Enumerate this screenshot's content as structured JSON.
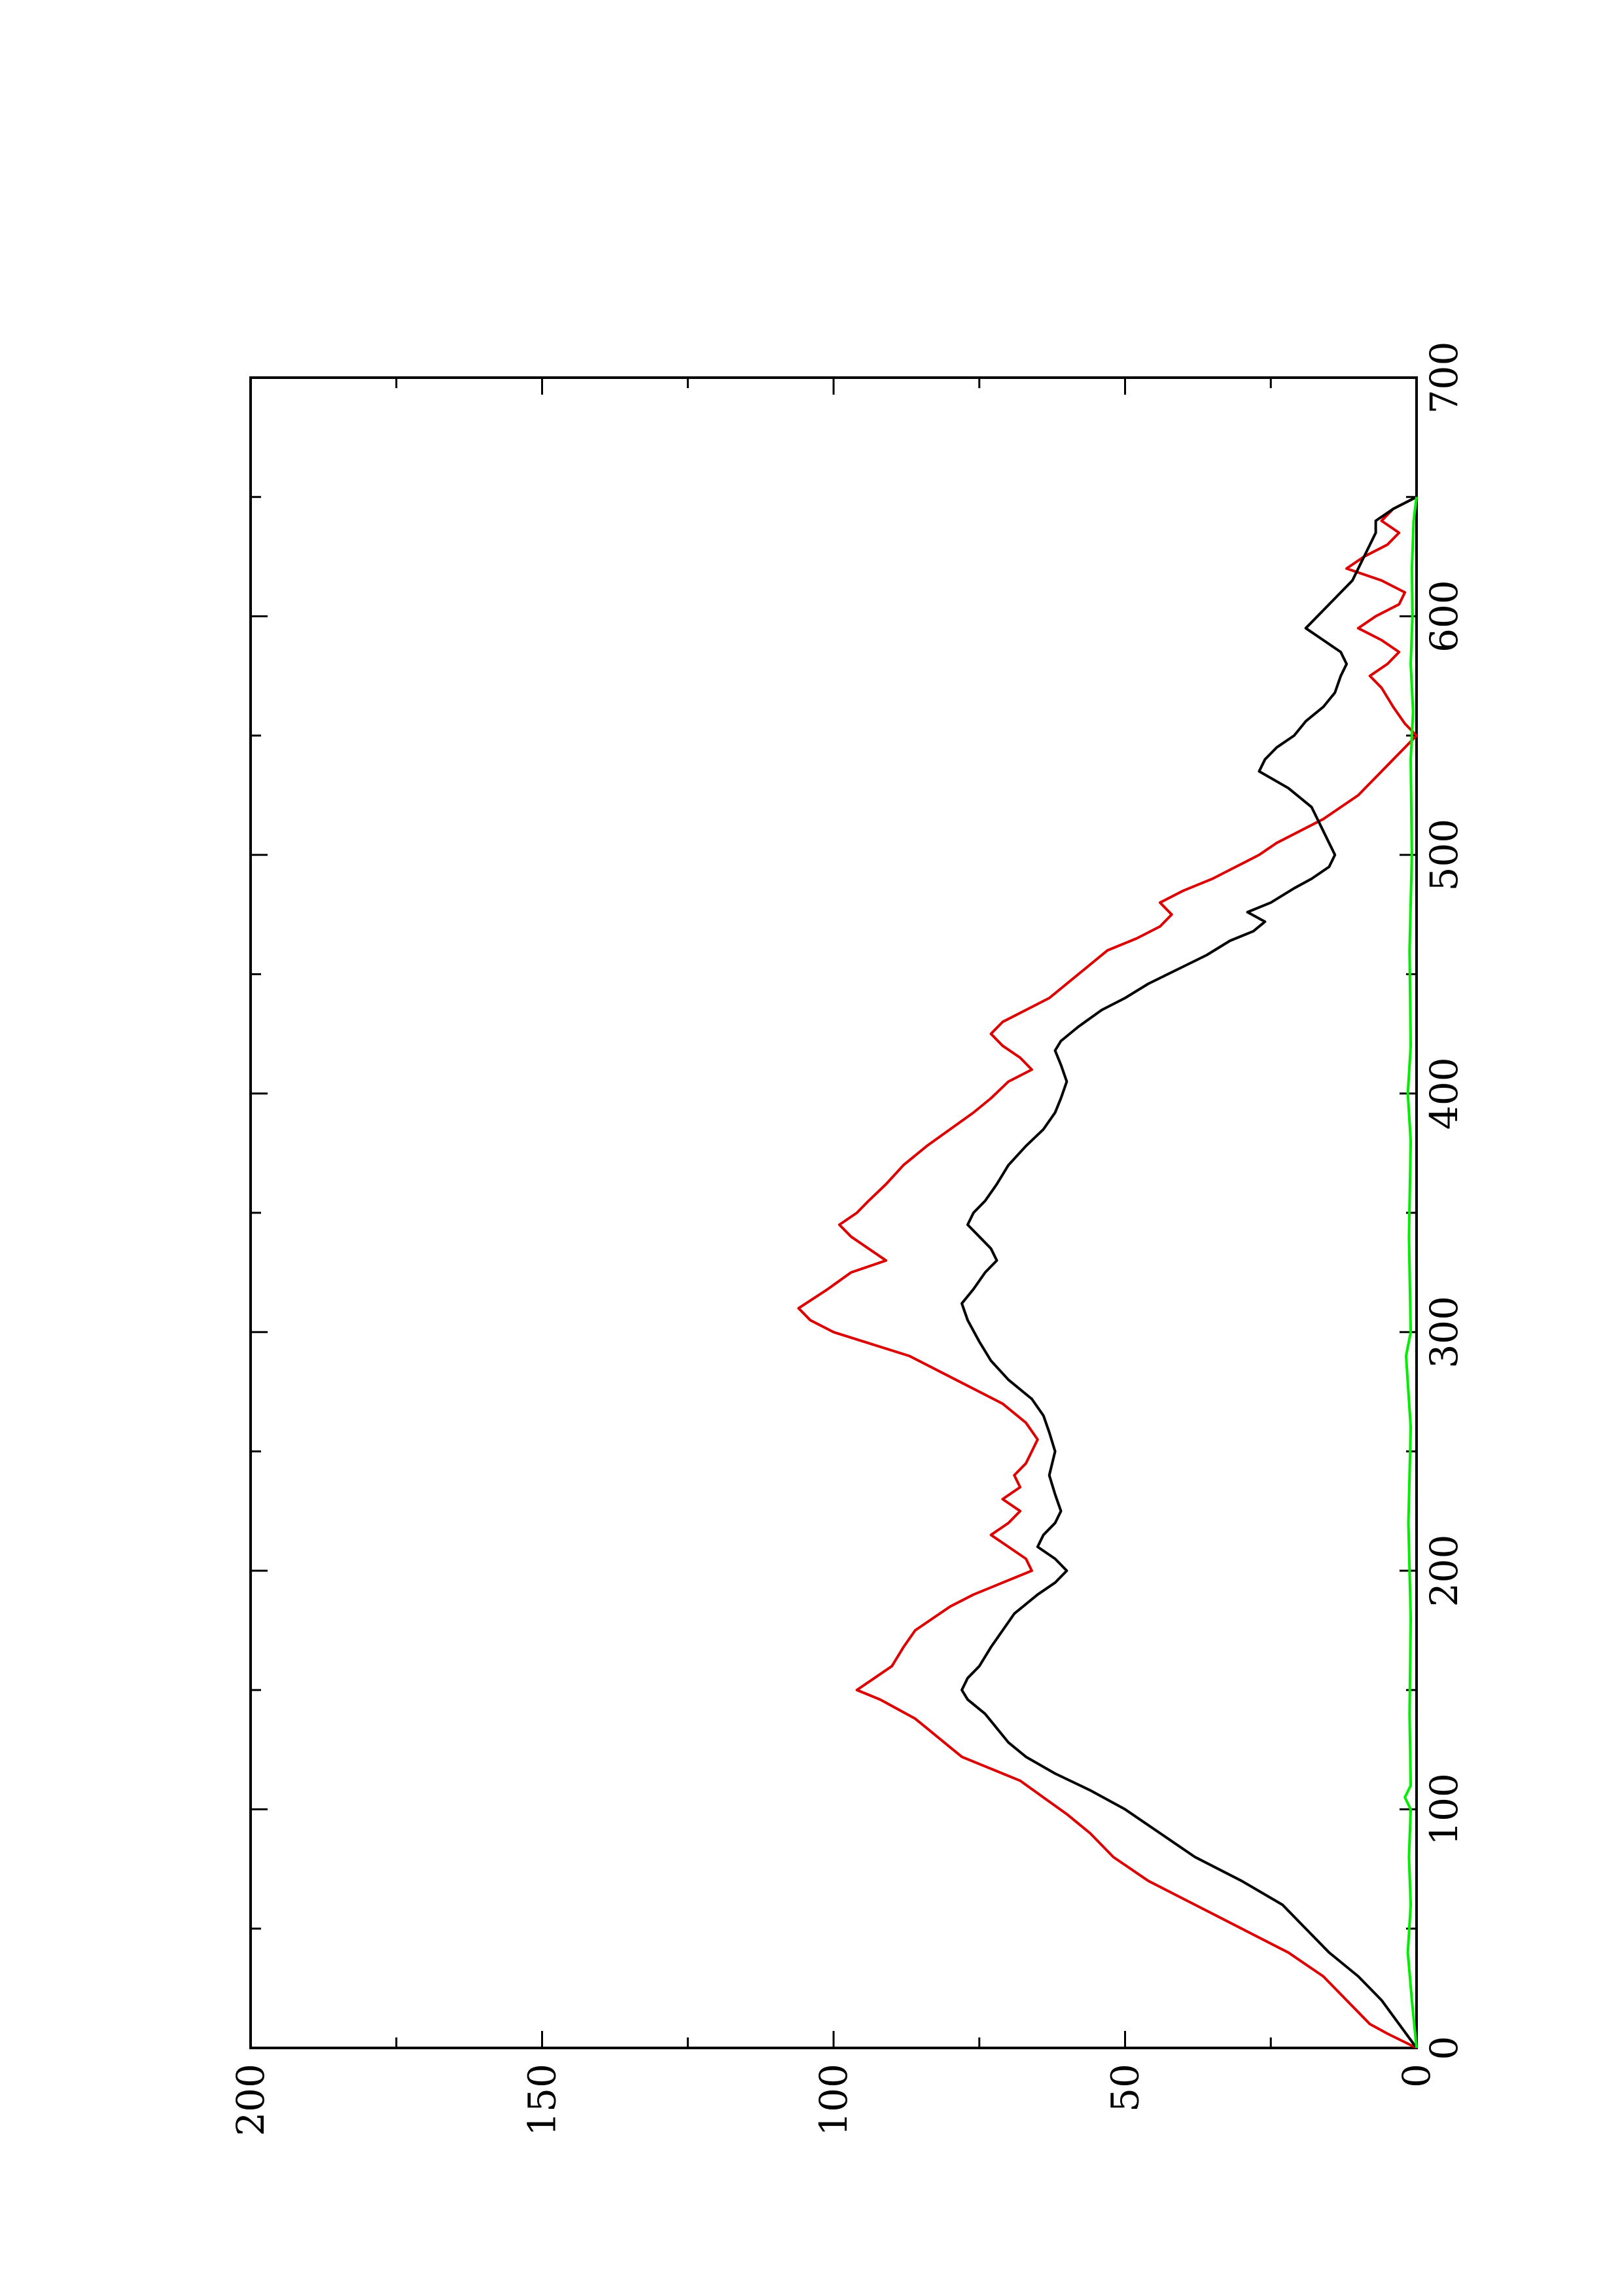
{
  "chart_data": {
    "type": "line",
    "title": "",
    "xlabel": "",
    "ylabel": "",
    "orientation": "rotated 90° counter-clockwise (page in landscape)",
    "xlim": [
      0,
      700
    ],
    "ylim": [
      0,
      200
    ],
    "x_ticks": [
      0,
      100,
      200,
      300,
      400,
      500,
      600,
      700
    ],
    "x_tick_labels": [
      "0",
      "100",
      "200",
      "300",
      "400",
      "500",
      "600",
      "700"
    ],
    "x_minor_ticks": [
      50,
      150,
      250,
      350,
      450,
      550,
      650
    ],
    "y_ticks": [
      0,
      50,
      100,
      150,
      200
    ],
    "y_tick_labels": [
      "0",
      "50",
      "100",
      "150",
      "200"
    ],
    "y_minor_ticks": [
      25,
      75,
      125,
      175
    ],
    "grid": false,
    "legend": "none",
    "series": [
      {
        "color": "#dd0000",
        "points": [
          [
            0,
            0
          ],
          [
            6,
            5
          ],
          [
            10,
            8
          ],
          [
            15,
            10
          ],
          [
            20,
            12
          ],
          [
            30,
            16
          ],
          [
            40,
            22
          ],
          [
            50,
            30
          ],
          [
            60,
            38
          ],
          [
            70,
            46
          ],
          [
            80,
            52
          ],
          [
            90,
            56
          ],
          [
            98,
            60
          ],
          [
            105,
            64
          ],
          [
            112,
            68
          ],
          [
            118,
            74
          ],
          [
            122,
            78
          ],
          [
            126,
            80
          ],
          [
            130,
            82
          ],
          [
            134,
            84
          ],
          [
            138,
            86
          ],
          [
            142,
            89
          ],
          [
            146,
            92
          ],
          [
            150,
            96
          ],
          [
            155,
            93
          ],
          [
            160,
            90
          ],
          [
            168,
            88
          ],
          [
            175,
            86
          ],
          [
            180,
            83
          ],
          [
            185,
            80
          ],
          [
            190,
            76
          ],
          [
            195,
            71
          ],
          [
            200,
            66
          ],
          [
            205,
            67
          ],
          [
            210,
            70
          ],
          [
            215,
            73
          ],
          [
            220,
            70
          ],
          [
            225,
            68
          ],
          [
            230,
            71
          ],
          [
            235,
            68
          ],
          [
            240,
            69
          ],
          [
            245,
            67
          ],
          [
            250,
            66
          ],
          [
            255,
            65
          ],
          [
            262,
            67
          ],
          [
            270,
            71
          ],
          [
            280,
            79
          ],
          [
            290,
            87
          ],
          [
            300,
            100
          ],
          [
            305,
            104
          ],
          [
            310,
            106
          ],
          [
            318,
            101
          ],
          [
            325,
            97
          ],
          [
            330,
            91
          ],
          [
            335,
            94
          ],
          [
            340,
            97
          ],
          [
            345,
            99
          ],
          [
            350,
            96
          ],
          [
            355,
            94
          ],
          [
            362,
            91
          ],
          [
            370,
            88
          ],
          [
            378,
            84
          ],
          [
            385,
            80
          ],
          [
            392,
            76
          ],
          [
            398,
            73
          ],
          [
            405,
            70
          ],
          [
            410,
            66
          ],
          [
            415,
            68
          ],
          [
            420,
            71
          ],
          [
            425,
            73
          ],
          [
            430,
            71
          ],
          [
            435,
            67
          ],
          [
            440,
            63
          ],
          [
            450,
            58
          ],
          [
            460,
            53
          ],
          [
            465,
            48
          ],
          [
            470,
            44
          ],
          [
            475,
            42
          ],
          [
            480,
            44
          ],
          [
            485,
            40
          ],
          [
            490,
            35
          ],
          [
            495,
            31
          ],
          [
            500,
            27
          ],
          [
            505,
            24
          ],
          [
            510,
            20
          ],
          [
            515,
            16
          ],
          [
            520,
            13
          ],
          [
            525,
            10
          ],
          [
            530,
            8
          ],
          [
            535,
            6
          ],
          [
            540,
            4
          ],
          [
            545,
            2
          ],
          [
            550,
            0
          ],
          [
            555,
            2
          ],
          [
            562,
            4
          ],
          [
            570,
            6
          ],
          [
            575,
            8
          ],
          [
            580,
            5
          ],
          [
            585,
            3
          ],
          [
            590,
            6
          ],
          [
            595,
            10
          ],
          [
            600,
            7
          ],
          [
            605,
            3
          ],
          [
            610,
            2
          ],
          [
            615,
            6
          ],
          [
            620,
            12
          ],
          [
            625,
            9
          ],
          [
            630,
            5
          ],
          [
            635,
            3
          ],
          [
            640,
            6
          ],
          [
            645,
            4
          ],
          [
            650,
            0
          ]
        ]
      },
      {
        "color": "#000000",
        "points": [
          [
            0,
            0
          ],
          [
            10,
            3
          ],
          [
            20,
            6
          ],
          [
            30,
            10
          ],
          [
            40,
            15
          ],
          [
            50,
            19
          ],
          [
            60,
            23
          ],
          [
            70,
            30
          ],
          [
            80,
            38
          ],
          [
            90,
            44
          ],
          [
            100,
            50
          ],
          [
            108,
            56
          ],
          [
            115,
            62
          ],
          [
            122,
            67
          ],
          [
            128,
            70
          ],
          [
            134,
            72
          ],
          [
            140,
            74
          ],
          [
            146,
            77
          ],
          [
            150,
            78
          ],
          [
            155,
            77
          ],
          [
            160,
            75
          ],
          [
            168,
            73
          ],
          [
            175,
            71
          ],
          [
            182,
            69
          ],
          [
            190,
            65
          ],
          [
            195,
            62
          ],
          [
            200,
            60
          ],
          [
            205,
            62
          ],
          [
            210,
            65
          ],
          [
            215,
            64
          ],
          [
            220,
            62
          ],
          [
            225,
            61
          ],
          [
            232,
            62
          ],
          [
            240,
            63
          ],
          [
            250,
            62
          ],
          [
            258,
            63
          ],
          [
            265,
            64
          ],
          [
            272,
            66
          ],
          [
            280,
            70
          ],
          [
            288,
            73
          ],
          [
            296,
            75
          ],
          [
            305,
            77
          ],
          [
            312,
            78
          ],
          [
            318,
            76
          ],
          [
            325,
            74
          ],
          [
            330,
            72
          ],
          [
            335,
            73
          ],
          [
            340,
            75
          ],
          [
            345,
            77
          ],
          [
            350,
            76
          ],
          [
            355,
            74
          ],
          [
            362,
            72
          ],
          [
            370,
            70
          ],
          [
            378,
            67
          ],
          [
            385,
            64
          ],
          [
            392,
            62
          ],
          [
            398,
            61
          ],
          [
            405,
            60
          ],
          [
            412,
            61
          ],
          [
            418,
            62
          ],
          [
            422,
            61
          ],
          [
            428,
            58
          ],
          [
            435,
            54
          ],
          [
            440,
            50
          ],
          [
            446,
            46
          ],
          [
            452,
            41
          ],
          [
            458,
            36
          ],
          [
            464,
            32
          ],
          [
            468,
            28
          ],
          [
            472,
            26
          ],
          [
            476,
            29
          ],
          [
            480,
            25
          ],
          [
            486,
            21
          ],
          [
            490,
            18
          ],
          [
            495,
            15
          ],
          [
            500,
            14
          ],
          [
            505,
            15
          ],
          [
            510,
            16
          ],
          [
            515,
            17
          ],
          [
            520,
            18
          ],
          [
            528,
            22
          ],
          [
            535,
            27
          ],
          [
            540,
            26
          ],
          [
            545,
            24
          ],
          [
            550,
            21
          ],
          [
            556,
            19
          ],
          [
            562,
            16
          ],
          [
            568,
            14
          ],
          [
            575,
            13
          ],
          [
            580,
            12
          ],
          [
            585,
            13
          ],
          [
            590,
            16
          ],
          [
            595,
            19
          ],
          [
            600,
            17
          ],
          [
            605,
            15
          ],
          [
            610,
            13
          ],
          [
            615,
            11
          ],
          [
            620,
            10
          ],
          [
            625,
            9
          ],
          [
            630,
            8
          ],
          [
            635,
            7
          ],
          [
            640,
            7
          ],
          [
            645,
            4
          ],
          [
            650,
            0
          ]
        ]
      },
      {
        "color": "#00ee00",
        "points": [
          [
            0,
            0
          ],
          [
            20,
            0.8
          ],
          [
            40,
            1.5
          ],
          [
            60,
            1
          ],
          [
            80,
            1.3
          ],
          [
            100,
            1
          ],
          [
            105,
            2
          ],
          [
            110,
            1
          ],
          [
            140,
            1.2
          ],
          [
            180,
            1
          ],
          [
            220,
            1.4
          ],
          [
            260,
            1
          ],
          [
            290,
            1.8
          ],
          [
            300,
            1
          ],
          [
            340,
            1.3
          ],
          [
            380,
            1
          ],
          [
            400,
            1.5
          ],
          [
            420,
            1
          ],
          [
            460,
            1.2
          ],
          [
            500,
            0.8
          ],
          [
            540,
            1
          ],
          [
            560,
            0.6
          ],
          [
            580,
            1
          ],
          [
            600,
            0.7
          ],
          [
            620,
            0.8
          ],
          [
            640,
            0.5
          ],
          [
            650,
            0
          ]
        ]
      }
    ]
  }
}
